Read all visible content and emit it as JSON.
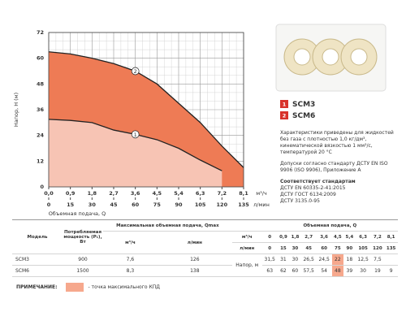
{
  "chart_data": {
    "type": "line",
    "ylabel": "Напор, H (м)",
    "xlabel": "Объемная подача, Q",
    "xunit": "м³/ч",
    "x2unit": "л/мин",
    "x": [
      0,
      0.9,
      1.8,
      2.7,
      3.6,
      4.5,
      5.4,
      6.3,
      7.2,
      8.1
    ],
    "series": [
      {
        "name": "SCM3",
        "marker": "1",
        "color": "#f7c4b4",
        "values": [
          31.5,
          31,
          30,
          26.5,
          24.5,
          22,
          18,
          12.5,
          7.5,
          null
        ]
      },
      {
        "name": "SCM6",
        "marker": "2",
        "color": "#ee7b55",
        "values": [
          63,
          62,
          60,
          57.5,
          54,
          48,
          39,
          30,
          19,
          9
        ]
      }
    ],
    "xlim": [
      0,
      8.1
    ],
    "xticks": [
      {
        "value": 0,
        "label": "0,0"
      },
      {
        "value": 0.9,
        "label": "0,9"
      },
      {
        "value": 1.8,
        "label": "1,8"
      },
      {
        "value": 2.7,
        "label": "2,7"
      },
      {
        "value": 3.6,
        "label": "3,6"
      },
      {
        "value": 4.5,
        "label": "4,5"
      },
      {
        "value": 5.4,
        "label": "5,4"
      },
      {
        "value": 6.3,
        "label": "6,3"
      },
      {
        "value": 7.2,
        "label": "7,2"
      },
      {
        "value": 8.1,
        "label": "8,1"
      }
    ],
    "x2lim": [
      0,
      135
    ],
    "x2ticks": [
      0,
      15,
      30,
      45,
      60,
      75,
      90,
      105,
      120,
      135
    ],
    "ylim": [
      0,
      72
    ],
    "yticks": [
      0,
      12,
      24,
      36,
      48,
      60,
      72
    ],
    "grid": true
  },
  "notes": {
    "conditions": "Характеристики приведены для жидкостей без газа с плотностью 1,0 кг/дм³, кинематической вязкостью 1 мм²/с, температурой 20 °C",
    "tolerance": "Допуски согласно стандарту ДСТУ EN ISO 9906 (ISO 9906), Приложение А",
    "standards_title": "Соответствует стандартам",
    "standards": [
      "ДСТУ EN 60335-2-41:2015",
      "ДСТУ ГОСТ 6134:2009",
      "ДСТУ 3135.0-95"
    ]
  },
  "table": {
    "model": "Модель",
    "power": "Потребляемая мощность (P₁), Вт",
    "qmax": "Максимальная объемная подача, Qmax",
    "qmax_units": [
      "м³/ч",
      "л/мин"
    ],
    "flow": "Объемная подача, Q",
    "flow_units": [
      "м³/ч",
      "л/мин"
    ],
    "flow_m3h": [
      "0",
      "0,9",
      "1,8",
      "2,7",
      "3,6",
      "4,5",
      "5,4",
      "6,3",
      "7,2",
      "8,1"
    ],
    "flow_lmin": [
      "0",
      "15",
      "30",
      "45",
      "60",
      "75",
      "90",
      "105",
      "120",
      "135"
    ],
    "head_label": "Напор, м",
    "highlight_column": 5,
    "highlight_color": "#f6a88d",
    "rows": [
      {
        "model": "SCM3",
        "power": "900",
        "qmax": [
          "7,6",
          "126"
        ],
        "head": [
          "31,5",
          "31",
          "30",
          "26,5",
          "24,5",
          "22",
          "18",
          "12,5",
          "7,5"
        ]
      },
      {
        "model": "SCM6",
        "power": "1500",
        "qmax": [
          "8,3",
          "138"
        ],
        "head": [
          "63",
          "62",
          "60",
          "57,5",
          "54",
          "48",
          "39",
          "30",
          "19",
          "9"
        ]
      }
    ]
  },
  "footnote": {
    "title": "ПРИМЕЧАНИЕ:",
    "text": "- точка максимального КПД"
  }
}
